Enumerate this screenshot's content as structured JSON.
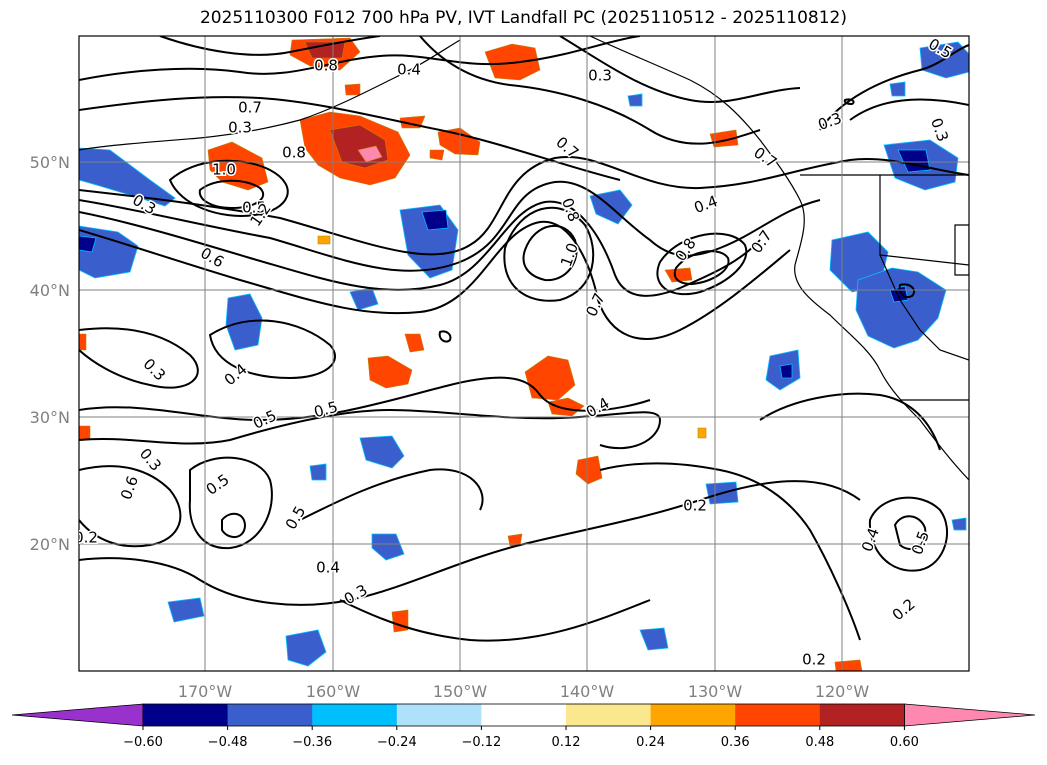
{
  "title": "2025110300 F012 700 hPa PV, IVT Landfall PC (2025110512 - 2025110812)",
  "lat_labels": [
    "50°N",
    "40°N",
    "30°N",
    "20°N"
  ],
  "lon_labels": [
    "170°W",
    "160°W",
    "150°W",
    "140°W",
    "130°W",
    "120°W"
  ],
  "contour_labels": [
    "0.8",
    "0.7",
    "0.3",
    "0.4",
    "0.5",
    "0.3",
    "0.8",
    "1.0",
    "1.2",
    "0.7",
    "0.6",
    "0.3",
    "0.3",
    "0.4",
    "0.5",
    "0.5",
    "1.0",
    "0.8",
    "0.7",
    "0.4",
    "0.8",
    "0.7",
    "0.4",
    "0.7",
    "0.3",
    "0.5",
    "0.6",
    "0.5",
    "0.3",
    "0.2",
    "0.2",
    "0.4",
    "0.5",
    "0.2",
    "0.2",
    "0.4",
    "0.3",
    "0.5",
    "0.3"
  ],
  "colorbar": {
    "ticks": [
      "−0.60",
      "−0.48",
      "−0.36",
      "−0.24",
      "−0.12",
      "0.12",
      "0.24",
      "0.36",
      "0.48",
      "0.60"
    ],
    "colors": [
      "#9932cc",
      "#00008b",
      "#3a5fcd",
      "#00bfff",
      "#afe1fa",
      "#ffffff",
      "#fbe88e",
      "#ffa500",
      "#ff4500",
      "#b22222",
      "#ff88b0"
    ]
  }
}
